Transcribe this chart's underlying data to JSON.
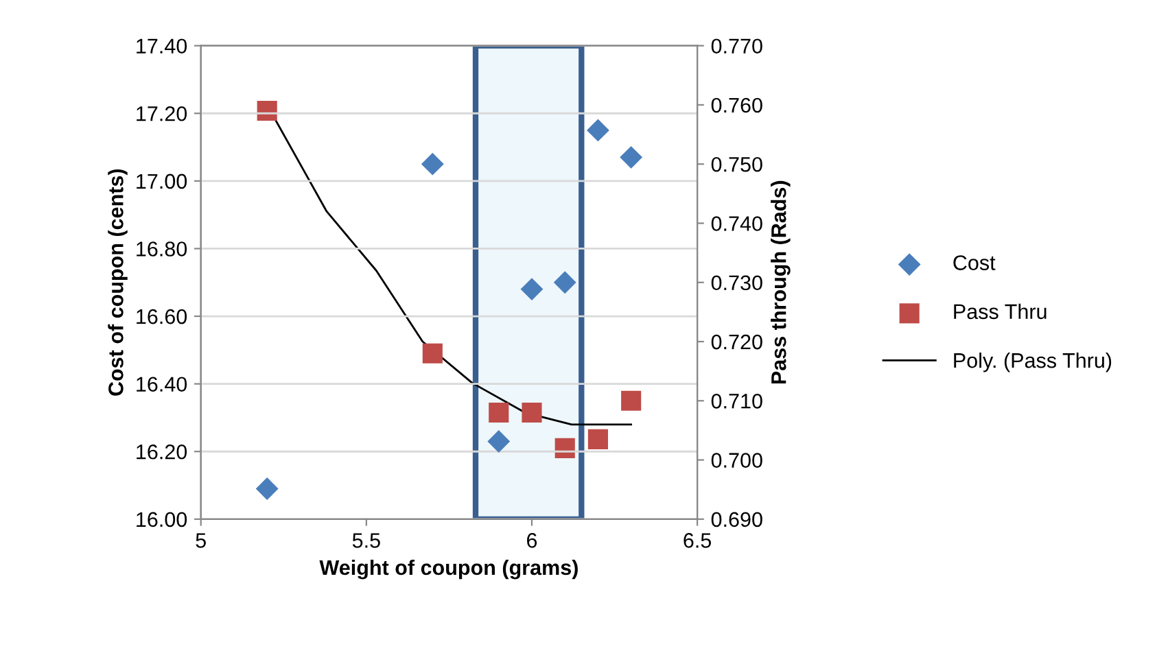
{
  "chart_data": {
    "type": "scatter",
    "xlabel": "Weight of coupon (grams)",
    "ylabel": "Cost of coupon (cents)",
    "y2label": "Pass through (Rads)",
    "series": [
      {
        "name": "Cost",
        "marker": "diamond",
        "color": "#4a7ebb",
        "x": [
          5.2,
          5.7,
          5.9,
          6.0,
          6.1,
          6.2,
          6.3
        ],
        "values": [
          16.09,
          17.05,
          16.23,
          16.68,
          16.7,
          17.15,
          17.07
        ]
      },
      {
        "name": "Pass Thru",
        "marker": "square",
        "axis": "y2",
        "color": "#be4b48",
        "x": [
          5.2,
          5.7,
          5.9,
          6.0,
          6.1,
          6.2,
          6.3
        ],
        "values": [
          0.759,
          0.718,
          0.708,
          0.708,
          0.702,
          0.7035,
          0.71
        ]
      },
      {
        "name": "Poly. (Pass Thru)",
        "type": "line",
        "marker": "none",
        "axis": "y2",
        "color": "#000000",
        "x": [
          5.2,
          5.38,
          5.53,
          5.67,
          5.82,
          5.98,
          6.12,
          6.3
        ],
        "values": [
          0.76,
          0.742,
          0.732,
          0.72,
          0.713,
          0.708,
          0.706,
          0.706
        ]
      }
    ],
    "bands": [
      {
        "axis": "x",
        "from": 5.83,
        "to": 6.15,
        "color": "#eef7fb"
      }
    ],
    "xlim": [
      5,
      6.5
    ],
    "xticks": [
      5,
      5.5,
      6,
      6.5
    ],
    "ylim": [
      16.0,
      17.4
    ],
    "yticks": [
      {
        "value": 16.0,
        "label": "16.00"
      },
      {
        "value": 16.2,
        "label": "16.20"
      },
      {
        "value": 16.4,
        "label": "16.40"
      },
      {
        "value": 16.6,
        "label": "16.60"
      },
      {
        "value": 16.8,
        "label": "16.80"
      },
      {
        "value": 17.0,
        "label": "17.00"
      },
      {
        "value": 17.2,
        "label": "17.20"
      },
      {
        "value": 17.4,
        "label": "17.40"
      }
    ],
    "y2lim": [
      0.69,
      0.77
    ],
    "y2ticks": [
      {
        "value": 0.69,
        "label": "0.690"
      },
      {
        "value": 0.7,
        "label": "0.700"
      },
      {
        "value": 0.71,
        "label": "0.710"
      },
      {
        "value": 0.72,
        "label": "0.720"
      },
      {
        "value": 0.73,
        "label": "0.730"
      },
      {
        "value": 0.74,
        "label": "0.740"
      },
      {
        "value": 0.75,
        "label": "0.750"
      },
      {
        "value": 0.76,
        "label": "0.760"
      },
      {
        "value": 0.77,
        "label": "0.770"
      }
    ],
    "grid": "y",
    "legend": "right"
  }
}
